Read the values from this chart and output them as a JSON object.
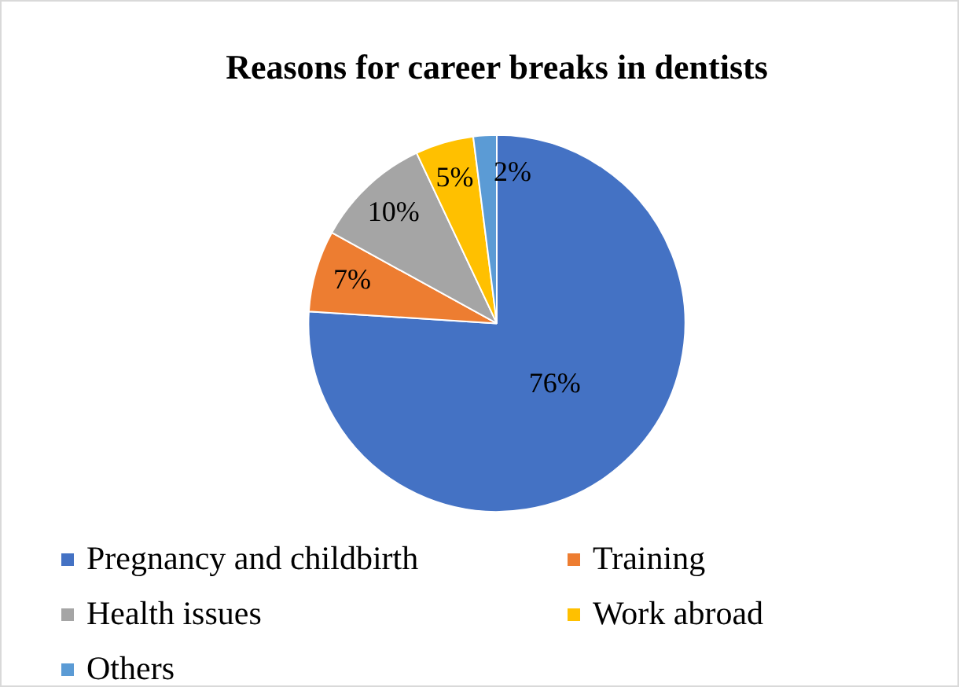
{
  "chart_data": {
    "type": "pie",
    "title": "Reasons for career breaks in dentists",
    "categories": [
      "Pregnancy and childbirth",
      "Training",
      "Health issues",
      "Work abroad",
      "Others"
    ],
    "values": [
      76,
      7,
      10,
      5,
      2
    ],
    "colors": [
      "#4472c4",
      "#ed7d31",
      "#a5a5a5",
      "#ffc000",
      "#5b9bd5"
    ],
    "value_labels": [
      "76%",
      "7%",
      "10%",
      "5%",
      "2%"
    ],
    "legend": "bottom"
  }
}
